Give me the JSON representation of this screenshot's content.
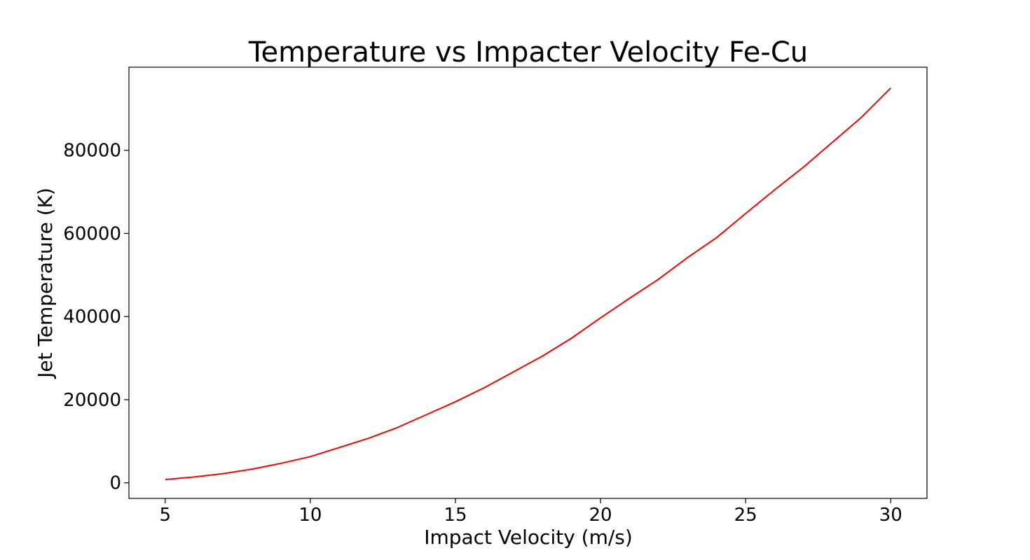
{
  "chart_data": {
    "type": "line",
    "title": "Temperature vs Impacter Velocity Fe-Cu",
    "xlabel": "Impact Velocity (m/s)",
    "ylabel": "Jet Temperature (K)",
    "xlim": [
      3.75,
      31.25
    ],
    "ylim": [
      -3750,
      100000
    ],
    "xticks": [
      5,
      10,
      15,
      20,
      25,
      30
    ],
    "yticks": [
      0,
      20000,
      40000,
      60000,
      80000
    ],
    "grid": false,
    "series": [
      {
        "name": "Fe-Cu",
        "color": "#ff0000",
        "x": [
          5,
          6,
          7,
          8,
          9,
          10,
          11,
          12,
          13,
          14,
          15,
          16,
          17,
          18,
          19,
          20,
          21,
          22,
          23,
          24,
          25,
          26,
          27,
          28,
          29,
          30
        ],
        "y": [
          800,
          1400,
          2200,
          3300,
          4700,
          6300,
          8500,
          10700,
          13300,
          16400,
          19500,
          22900,
          26700,
          30500,
          34800,
          39700,
          44400,
          49000,
          54200,
          59000,
          64800,
          70500,
          76000,
          82000,
          88000,
          95000
        ]
      }
    ]
  }
}
